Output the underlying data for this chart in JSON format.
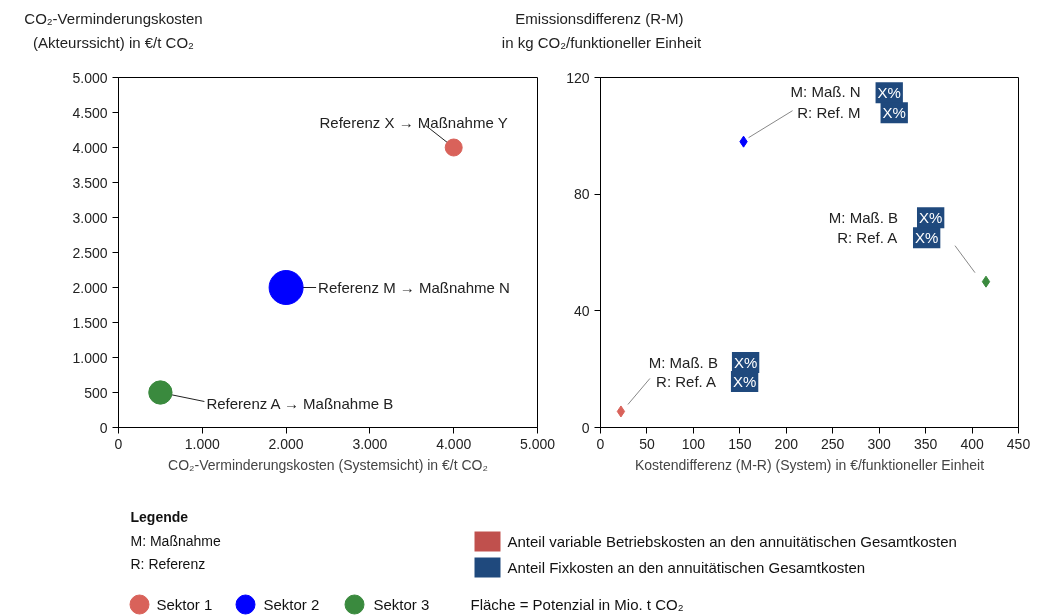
{
  "chart_data": [
    {
      "type": "bubble",
      "ylabel": "CO₂-Verminderungskosten\n(Akteurssicht) in €/t CO₂",
      "xlabel": "CO₂-Verminderungskosten (Systemsicht) in €/t CO₂",
      "xlim": [
        0,
        5000
      ],
      "ylim": [
        0,
        5000
      ],
      "xticks": [
        0,
        {
          "value": 1000,
          "label": "1.000"
        },
        {
          "value": 2000,
          "label": "2.000"
        },
        {
          "value": 3000,
          "label": "3.000"
        },
        {
          "value": 4000,
          "label": "4.000"
        },
        {
          "value": 5000,
          "label": "5.000"
        }
      ],
      "yticks": [
        0,
        500,
        {
          "value": 1000,
          "label": "1.000"
        },
        {
          "value": 1500,
          "label": "1.500"
        },
        {
          "value": 2000,
          "label": "2.000"
        },
        {
          "value": 2500,
          "label": "2.500"
        },
        {
          "value": 3000,
          "label": "3.000"
        },
        {
          "value": 3500,
          "label": "3.500"
        },
        {
          "value": 4000,
          "label": "4.000"
        },
        {
          "value": 4500,
          "label": "4.500"
        },
        {
          "value": 5000,
          "label": "5.000"
        }
      ],
      "grid": false,
      "legend": "bottom",
      "marker": "circle",
      "series": [
        {
          "name": "Sektor 1",
          "color": "#d9625a",
          "x": [
            4000
          ],
          "values": [
            4000
          ],
          "sizes": [
            0.25
          ]
        },
        {
          "name": "Sektor 2",
          "color": "#0000ff",
          "x": [
            2000
          ],
          "values": [
            2000
          ],
          "sizes": [
            1
          ]
        },
        {
          "name": "Sektor 3",
          "color": "#3a8a3e",
          "x": [
            500
          ],
          "values": [
            500
          ],
          "sizes": [
            0.47
          ]
        }
      ],
      "annotations": [
        {
          "text": "Referenz X → Maßnahme Y",
          "x": 4000,
          "y": 4000
        },
        {
          "text": "Referenz M → Maßnahme N",
          "x": 2000,
          "y": 2000
        },
        {
          "text": "Referenz A → Maßnahme B",
          "x": 500,
          "y": 500
        },
        "Fläche = Potenzial in Mio. t CO₂"
      ]
    },
    {
      "type": "scatter",
      "ylabel": "Emissionsdifferenz  (R-M)\nin kg CO₂/funktioneller Einheit",
      "xlabel": "Kostendifferenz (M-R) (System) in €/funktioneller Einheit",
      "xlim": [
        0,
        450
      ],
      "ylim": [
        0,
        120
      ],
      "xticks": [
        0,
        50,
        100,
        150,
        200,
        250,
        300,
        350,
        400,
        450
      ],
      "yticks": [
        0,
        40,
        80,
        120
      ],
      "grid": false,
      "legend": "bottom",
      "marker": "diamond",
      "series": [
        {
          "color": "#d9625a",
          "x": [
            22
          ],
          "values": [
            5.5
          ]
        },
        {
          "color": "#0000ff",
          "x": [
            154
          ],
          "values": [
            98
          ]
        },
        {
          "color": "#3a8a3e",
          "x": [
            415
          ],
          "values": [
            50
          ]
        },
        {
          "name": "Anteil variable Betriebskosten an den annuitätischen Gesamtkosten",
          "type": "bar",
          "color": "#c0504d"
        },
        {
          "name": "Anteil Fixkosten an den annuitätischen Gesamtkosten",
          "type": "bar",
          "color": "#1f497d"
        }
      ],
      "annotations": [
        "M: Maß. B",
        "R: Ref. A",
        "X%",
        "X%",
        {
          "text": "M: Maß. N",
          "x": 154,
          "y": 98
        },
        "R: Ref. M",
        "X%",
        "X%",
        "M: Maß. B",
        "R: Ref. A",
        "X%",
        "X%",
        "Legende",
        "M: Maßnahme",
        "R: Referenz"
      ]
    }
  ]
}
